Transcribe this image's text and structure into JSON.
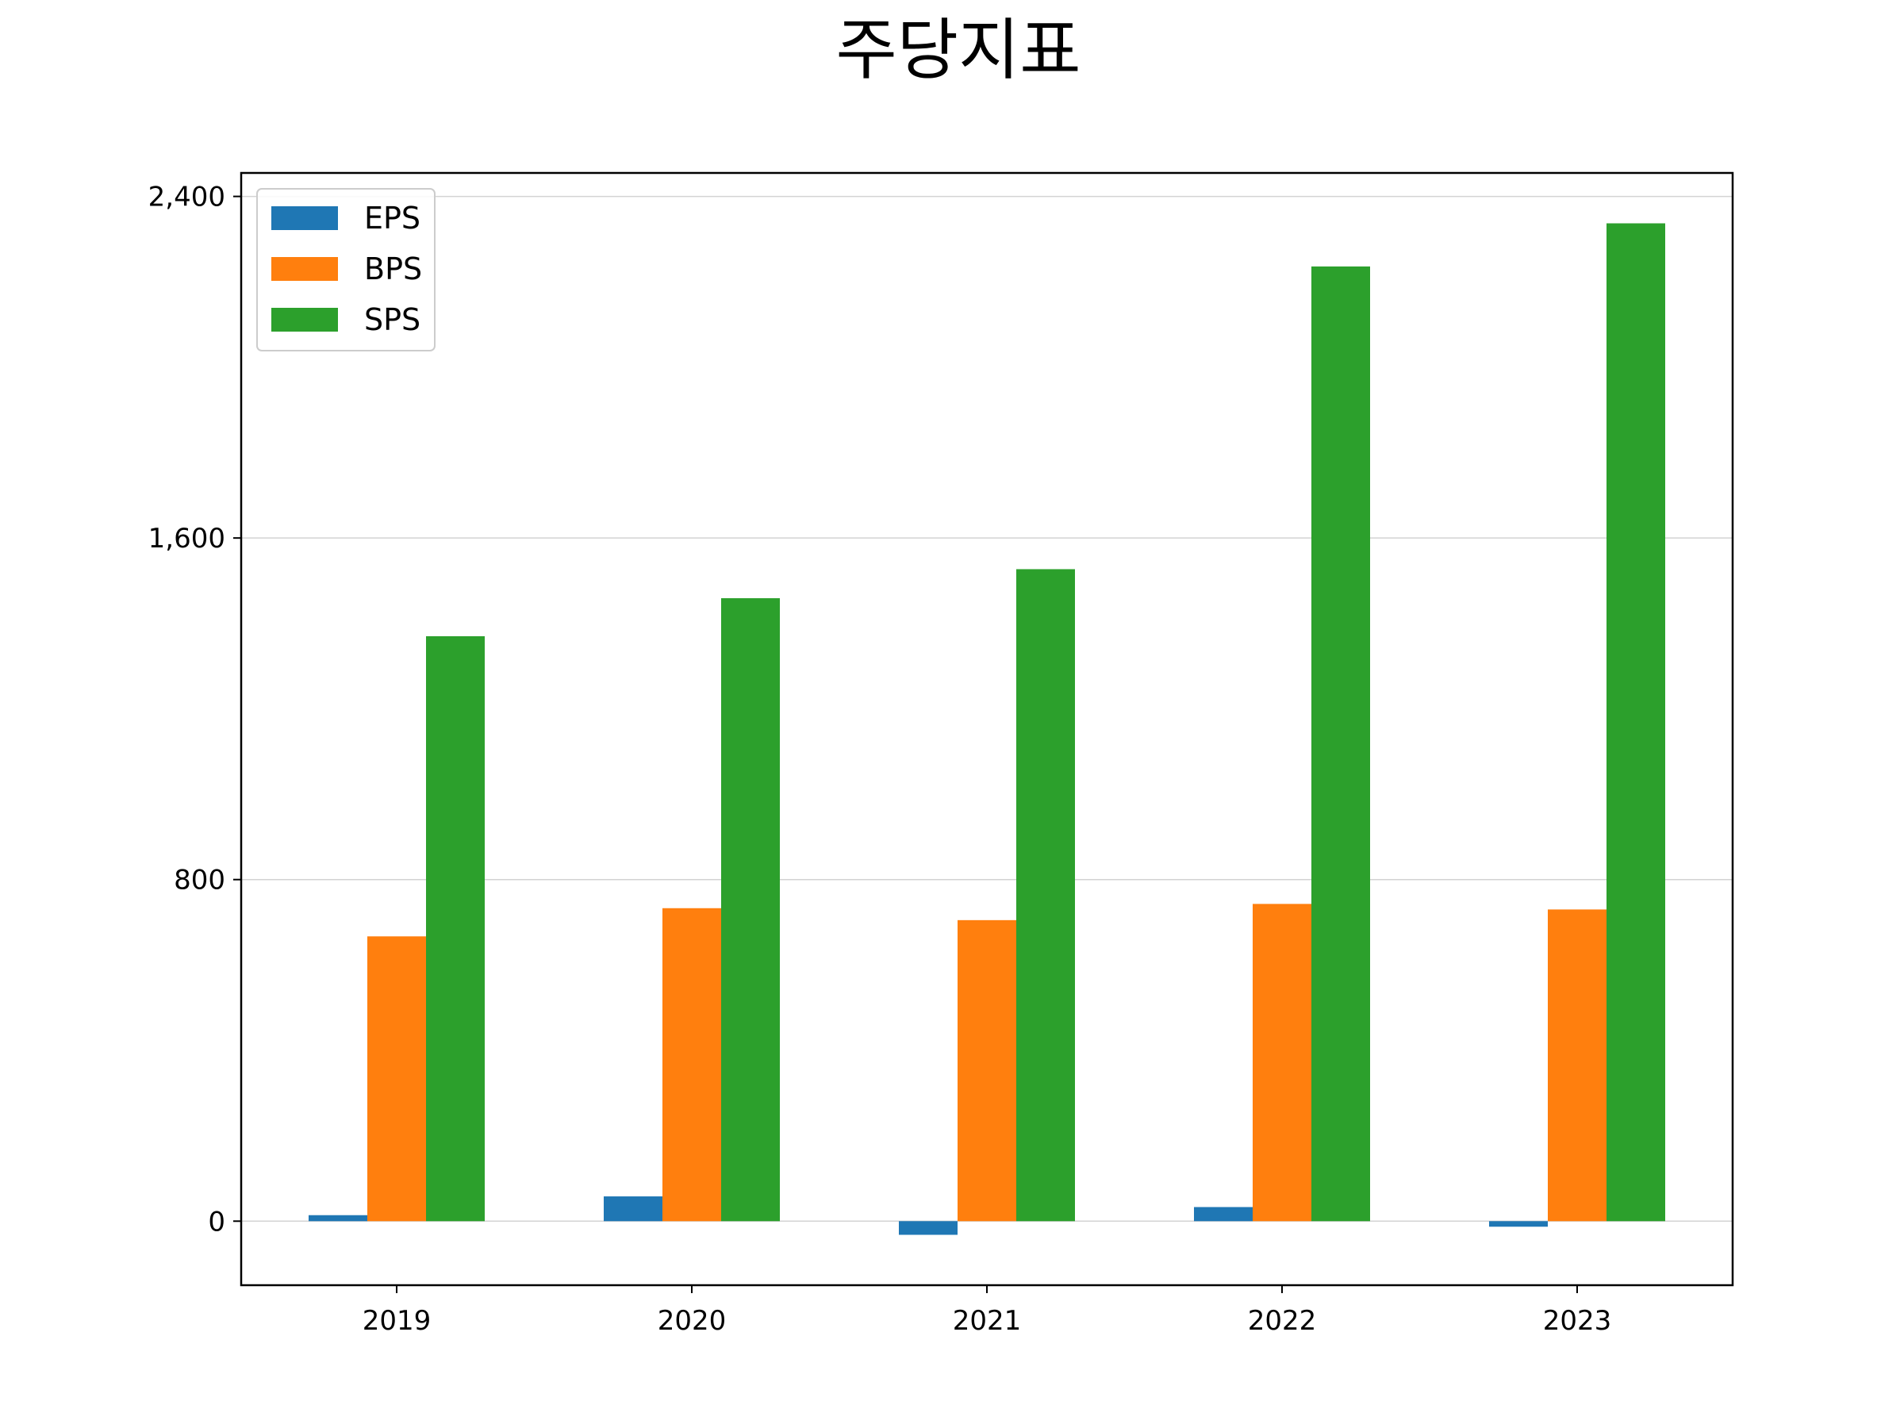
{
  "chart_data": {
    "type": "bar",
    "title": "주당지표",
    "xlabel": "",
    "ylabel": "",
    "categories": [
      "2019",
      "2020",
      "2021",
      "2022",
      "2023"
    ],
    "series": [
      {
        "name": "EPS",
        "color": "#1f77b4",
        "values": [
          14,
          58,
          -32,
          33,
          -13
        ]
      },
      {
        "name": "BPS",
        "color": "#ff7f0e",
        "values": [
          667,
          733,
          705,
          743,
          730
        ]
      },
      {
        "name": "SPS",
        "color": "#2ca02c",
        "values": [
          1370,
          1459,
          1527,
          2236,
          2337
        ]
      }
    ],
    "ylim": [
      -150,
      2455
    ],
    "yticks": [
      0,
      800,
      1600,
      2400
    ],
    "ytick_labels": [
      "0",
      "800",
      "1,600",
      "2,400"
    ],
    "grid": "y",
    "legend_position": "top-left"
  }
}
